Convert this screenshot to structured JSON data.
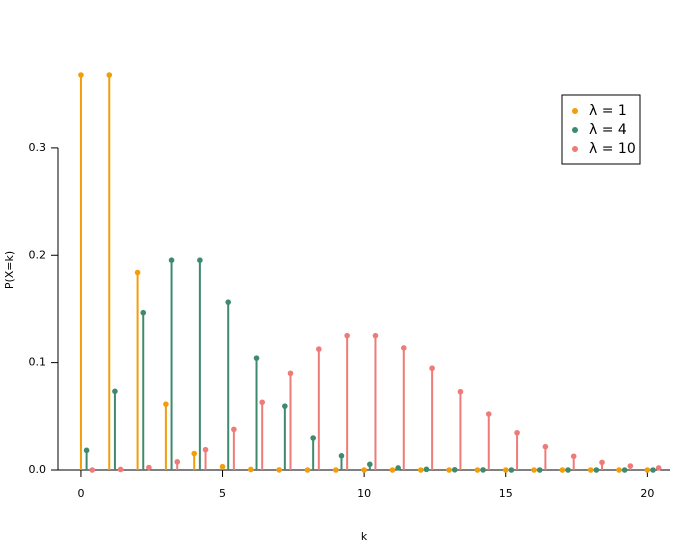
{
  "chart_data": {
    "type": "stem",
    "xlabel": "k",
    "ylabel": "P(X=k)",
    "xlim": [
      -0.81,
      20.8
    ],
    "ylim": [
      0,
      0.38
    ],
    "xticks": [
      0,
      5,
      10,
      15,
      20
    ],
    "yticks": [
      {
        "value": 0,
        "label": "0.0"
      },
      {
        "value": 0.1,
        "label": "0.1"
      },
      {
        "value": 0.2,
        "label": "0.2"
      },
      {
        "value": 0.3,
        "label": "0.3"
      }
    ],
    "legend": "top right",
    "series": [
      {
        "name": "λ = 1",
        "color": "#f29d0a",
        "x": [
          0,
          1,
          2,
          3,
          4,
          5,
          6,
          7,
          8,
          9,
          10,
          11,
          12,
          13,
          14,
          15,
          16,
          17,
          18,
          19,
          20
        ],
        "values": [
          0.3679,
          0.3679,
          0.1839,
          0.0613,
          0.0153,
          0.0031,
          0.0005,
          0.0001,
          0,
          0,
          0,
          0,
          0,
          0,
          0,
          0,
          0,
          0,
          0,
          0,
          0
        ]
      },
      {
        "name": "λ = 4",
        "color": "#3f8a6e",
        "x": [
          0.2,
          1.2,
          2.2,
          3.2,
          4.2,
          5.2,
          6.2,
          7.2,
          8.2,
          9.2,
          10.2,
          11.2,
          12.2,
          13.2,
          14.2,
          15.2,
          16.2,
          17.2,
          18.2,
          19.2,
          20.2
        ],
        "values": [
          0.0183,
          0.0733,
          0.1465,
          0.1954,
          0.1954,
          0.1563,
          0.1042,
          0.0595,
          0.0298,
          0.0132,
          0.0053,
          0.0019,
          0.0006,
          0.0002,
          0.0001,
          0,
          0,
          0,
          0,
          0,
          0
        ]
      },
      {
        "name": "λ = 10",
        "color": "#ee7b78",
        "x": [
          0.4,
          1.4,
          2.4,
          3.4,
          4.4,
          5.4,
          6.4,
          7.4,
          8.4,
          9.4,
          10.4,
          11.4,
          12.4,
          13.4,
          14.4,
          15.4,
          16.4,
          17.4,
          18.4,
          19.4,
          20.4
        ],
        "values": [
          0,
          0.0005,
          0.0023,
          0.0076,
          0.0189,
          0.0378,
          0.0631,
          0.0901,
          0.1126,
          0.1251,
          0.1251,
          0.1137,
          0.0948,
          0.0729,
          0.0521,
          0.0347,
          0.0217,
          0.0128,
          0.0071,
          0.0037,
          0.0019
        ]
      }
    ]
  }
}
